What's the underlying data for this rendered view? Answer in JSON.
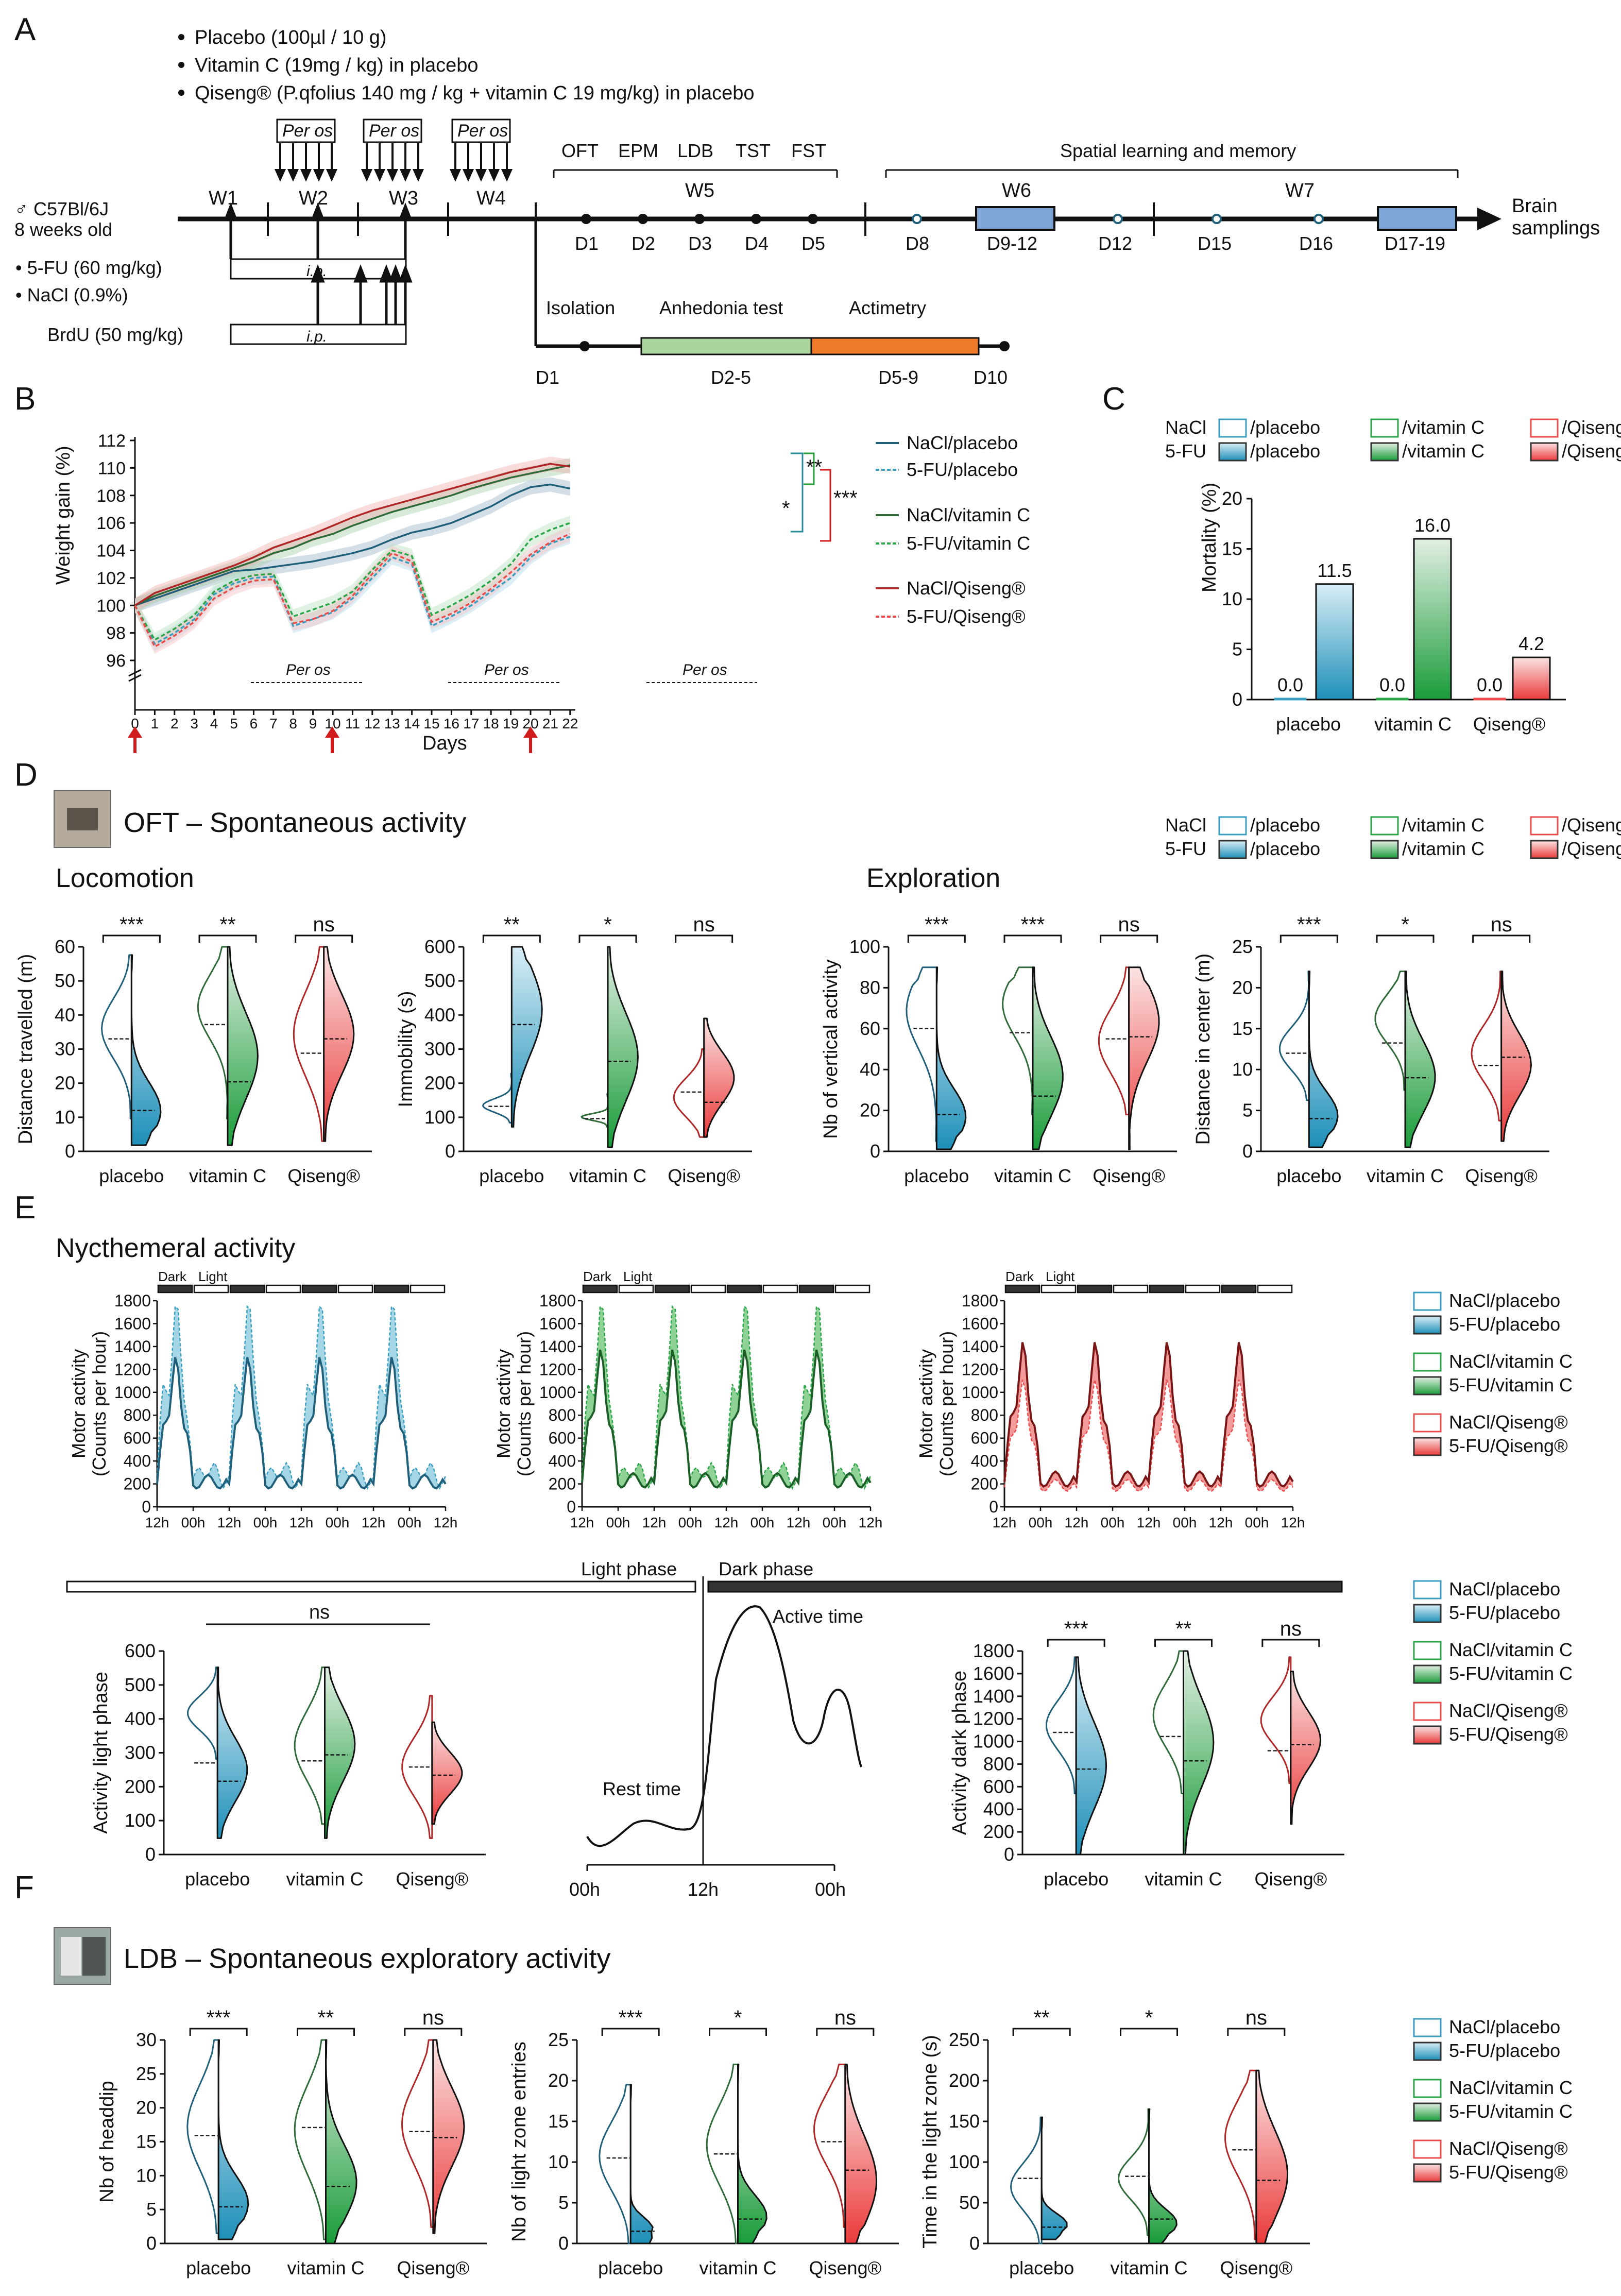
{
  "panels": {
    "a": "A",
    "b": "B",
    "c": "C",
    "d": "D",
    "e": "E",
    "f": "F"
  },
  "panelA": {
    "treatments": [
      "Placebo (100µl / 10 g)",
      "Vitamin C (19mg / kg) in placebo",
      "Qiseng® (P.qfolius 140 mg / kg + vitamin C 19 mg/kg) in placebo"
    ],
    "strain": "♂ C57Bl/6J",
    "age": "8 weeks old",
    "per_os": "Per os",
    "ip": "i.p.",
    "weeks": [
      "W1",
      "W2",
      "W3",
      "W4",
      "W5",
      "W6",
      "W7"
    ],
    "tests": [
      "OFT",
      "EPM",
      "LDB",
      "TST",
      "FST"
    ],
    "spatial": "Spatial learning and memory",
    "days": [
      "D1",
      "D2",
      "D3",
      "D4",
      "D5",
      "D8",
      "D9-12",
      "D12",
      "D15",
      "D16",
      "D17-19"
    ],
    "brain": "Brain",
    "samplings": "samplings",
    "fu": "• 5-FU (60 mg/kg)",
    "nacl": "• NaCl (0.9%)",
    "brdu": "BrdU (50 mg/kg)",
    "isolation": "Isolation",
    "anhedonia": "Anhedonia test",
    "actimetry": "Actimetry",
    "sub_days": [
      "D1",
      "D2-5",
      "D5-9",
      "D10"
    ]
  },
  "panelB": {
    "ylabel": "Weight gain (%)",
    "xlabel": "Days",
    "per_os": "Per os",
    "sig": [
      "**",
      "*",
      "***"
    ],
    "legend": [
      "NaCl/placebo",
      "5-FU/placebo",
      "NaCl/vitamin C",
      "5-FU/vitamin C",
      "NaCl/Qiseng®",
      "5-FU/Qiseng®"
    ],
    "yticks": [
      "96",
      "98",
      "100",
      "102",
      "104",
      "106",
      "108",
      "110",
      "112"
    ],
    "xticks": [
      "0",
      "1",
      "2",
      "3",
      "4",
      "5",
      "6",
      "7",
      "8",
      "9",
      "10",
      "11",
      "12",
      "13",
      "14",
      "15",
      "16",
      "17",
      "18",
      "19",
      "20",
      "21",
      "22"
    ]
  },
  "panelC": {
    "ylabel": "Mortality (%)",
    "legend": {
      "nacl": "NaCl",
      "fu": "5-FU",
      "placebo": "/placebo",
      "vitc": "/vitamin C",
      "qiseng": "/Qiseng®"
    },
    "yticks": [
      "0",
      "5",
      "10",
      "15",
      "20"
    ],
    "categories": [
      "placebo",
      "vitamin C",
      "Qiseng®"
    ],
    "labels": [
      "0.0",
      "11.5",
      "0.0",
      "16.0",
      "0.0",
      "4.2"
    ]
  },
  "panelD": {
    "title": "OFT – Spontaneous activity",
    "locomotion": "Locomotion",
    "exploration": "Exploration",
    "legend": {
      "nacl": "NaCl",
      "fu": "5-FU",
      "placebo": "/placebo",
      "vitc": "/vitamin C",
      "qiseng": "/Qiseng®"
    },
    "cats": [
      "placebo",
      "vitamin C",
      "Qiseng®"
    ],
    "plots": [
      {
        "ylabel": "Distance travelled (m)",
        "yticks": [
          "0",
          "10",
          "20",
          "30",
          "40",
          "50",
          "60"
        ],
        "sig": [
          "***",
          "**",
          "ns"
        ]
      },
      {
        "ylabel": "Immobility (s)",
        "yticks": [
          "0",
          "100",
          "200",
          "300",
          "400",
          "500",
          "600"
        ],
        "sig": [
          "**",
          "*",
          "ns"
        ]
      },
      {
        "ylabel": "Nb of vertical activity",
        "yticks": [
          "0",
          "20",
          "40",
          "60",
          "80",
          "100"
        ],
        "sig": [
          "***",
          "***",
          "ns"
        ]
      },
      {
        "ylabel": "Distance in center (m)",
        "yticks": [
          "0",
          "5",
          "10",
          "15",
          "20",
          "25"
        ],
        "sig": [
          "***",
          "*",
          "ns"
        ]
      }
    ]
  },
  "panelE": {
    "title": "Nycthemeral activity",
    "dark": "Dark",
    "light": "Light",
    "ylabel1": "Motor activity",
    "ylabel2": "(Counts per hour)",
    "yticks": [
      "0",
      "200",
      "400",
      "600",
      "800",
      "1000",
      "1200",
      "1400",
      "1600",
      "1800"
    ],
    "xticks": [
      "12h",
      "00h",
      "12h",
      "00h",
      "12h",
      "00h",
      "12h",
      "00h",
      "12h"
    ],
    "legend": [
      "NaCl/placebo",
      "5-FU/placebo",
      "NaCl/vitamin C",
      "5-FU/vitamin C",
      "NaCl/Qiseng®",
      "5-FU/Qiseng®"
    ],
    "light_phase": "Light phase",
    "dark_phase": "Dark phase",
    "ns": "ns",
    "active_time": "Active time",
    "rest_time": "Rest time",
    "schema_x": [
      "00h",
      "12h",
      "00h"
    ],
    "light_ylabel": "Activity light phase",
    "light_yticks": [
      "0",
      "100",
      "200",
      "300",
      "400",
      "500",
      "600"
    ],
    "dark_ylabel": "Activity dark phase",
    "dark_yticks": [
      "0",
      "200",
      "400",
      "600",
      "800",
      "1000",
      "1200",
      "1400",
      "1600",
      "1800"
    ],
    "dark_sig": [
      "***",
      "**",
      "ns"
    ],
    "cats": [
      "placebo",
      "vitamin C",
      "Qiseng®"
    ]
  },
  "panelF": {
    "title": "LDB – Spontaneous exploratory activity",
    "cats": [
      "placebo",
      "vitamin C",
      "Qiseng®"
    ],
    "legend": [
      "NaCl/placebo",
      "5-FU/placebo",
      "NaCl/vitamin C",
      "5-FU/vitamin C",
      "NaCl/Qiseng®",
      "5-FU/Qiseng®"
    ],
    "plots": [
      {
        "ylabel": "Nb of headdip",
        "yticks": [
          "0",
          "5",
          "10",
          "15",
          "20",
          "25",
          "30"
        ],
        "sig": [
          "***",
          "**",
          "ns"
        ]
      },
      {
        "ylabel": "Nb of light zone entries",
        "yticks": [
          "0",
          "5",
          "10",
          "15",
          "20",
          "25"
        ],
        "sig": [
          "***",
          "*",
          "ns"
        ]
      },
      {
        "ylabel": "Time in the light zone (s)",
        "yticks": [
          "0",
          "50",
          "100",
          "150",
          "200",
          "250"
        ],
        "sig": [
          "**",
          "*",
          "ns"
        ]
      }
    ]
  },
  "colors": {
    "blue": "#3a9ec0",
    "green": "#2aa548",
    "red": "#ea4b4b",
    "darkblue": "#1f5f7a",
    "darkgreen": "#2f6b38",
    "darkred": "#b02525"
  }
}
